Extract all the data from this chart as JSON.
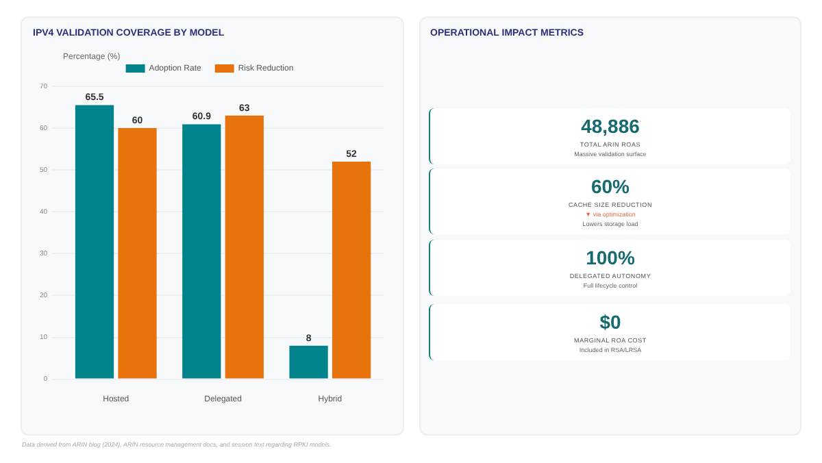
{
  "chart_data": [
    {
      "type": "bar",
      "title": "IPV4 VALIDATION COVERAGE BY MODEL",
      "ylabel": "Percentage (%)",
      "categories": [
        "Hosted",
        "Delegated",
        "Hybrid"
      ],
      "series": [
        {
          "name": "Adoption Rate",
          "color": "#00838a",
          "values": [
            65.5,
            60.9,
            8
          ]
        },
        {
          "name": "Risk Reduction",
          "color": "#e8730c",
          "values": [
            60,
            63,
            52
          ]
        }
      ],
      "ylim": [
        0,
        70
      ],
      "yticks": [
        0,
        10,
        20,
        30,
        40,
        50,
        60,
        70
      ],
      "grid": "y",
      "legend": "top",
      "data_labels": true,
      "annotations": [
        "Data derived from ARIN blog (2024), ARIN resource management docs, and session text regarding RPKI models."
      ]
    },
    {
      "type": "other",
      "title": "OPERATIONAL IMPACT METRICS"
    },
    {
      "type": "other",
      "title": "48,886",
      "subtitle": "TOTAL ARIN ROAS",
      "annotations": [
        "Massive validation surface"
      ]
    },
    {
      "type": "other",
      "title": "60%",
      "subtitle": "CACHE SIZE REDUCTION",
      "annotations": [
        "▼ via optimization",
        "Lowers storage load"
      ]
    },
    {
      "type": "other",
      "title": "100%",
      "subtitle": "DELEGATED AUTONOMY",
      "annotations": [
        "Full lifecycle control"
      ]
    },
    {
      "type": "other",
      "title": "$0",
      "subtitle": "MARGINAL ROA COST",
      "annotations": [
        "Included in RSA/LRSA"
      ]
    }
  ]
}
